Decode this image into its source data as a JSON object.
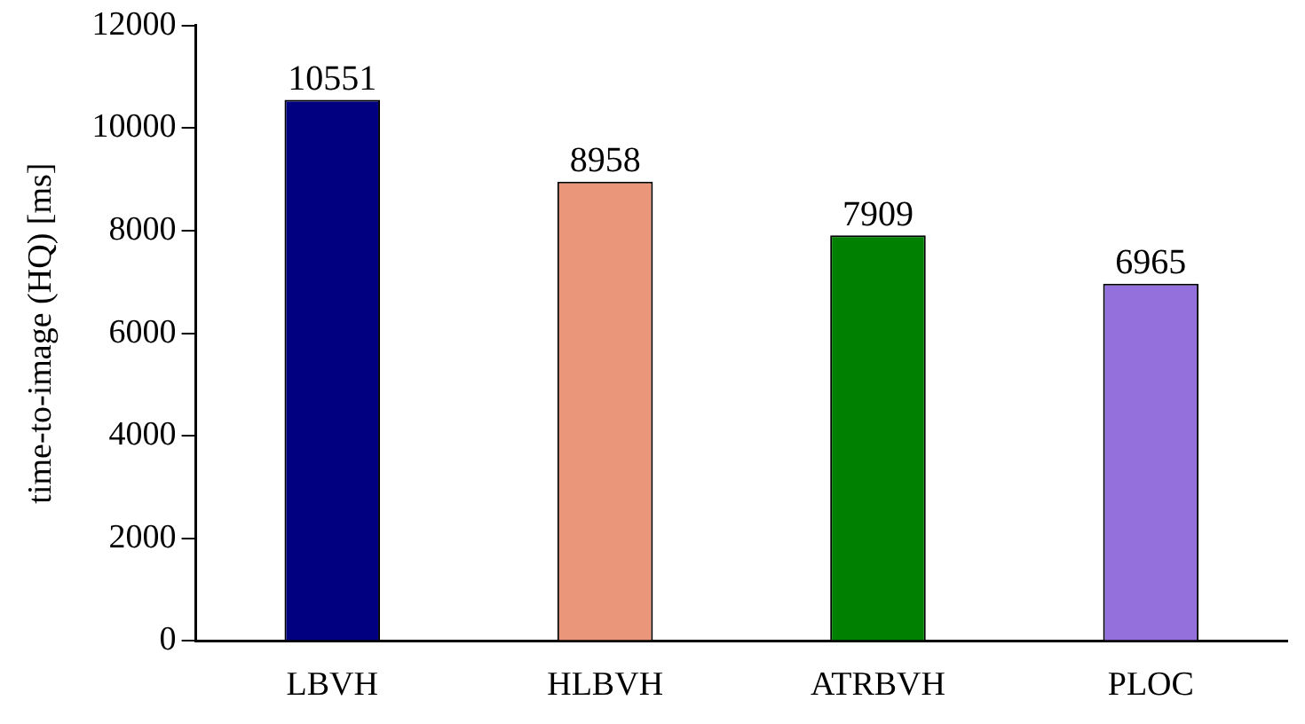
{
  "chart_data": {
    "type": "bar",
    "ylabel": "time-to-image (HQ) [ms]",
    "categories": [
      "LBVH",
      "HLBVH",
      "ATRBVH",
      "PLOC"
    ],
    "values": [
      10551,
      8958,
      7909,
      6965
    ],
    "colors": [
      "#000080",
      "#e9967a",
      "#008000",
      "#9370db"
    ],
    "ylim": [
      0,
      12000
    ],
    "yticks": [
      0,
      2000,
      4000,
      6000,
      8000,
      10000,
      12000
    ],
    "grid": false,
    "legend": false,
    "data_labels": true
  }
}
